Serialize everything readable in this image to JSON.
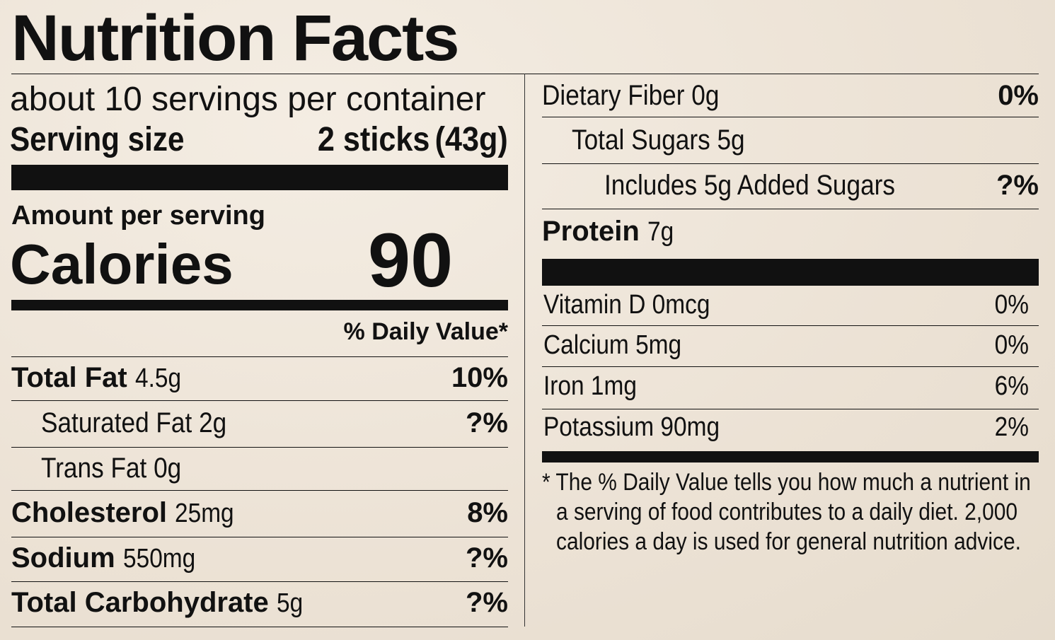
{
  "title": "Nutrition Facts",
  "servings_per_container": "about 10 servings per container",
  "serving_size": {
    "label": "Serving size",
    "amount": "2 sticks",
    "weight": "(43g)"
  },
  "amount_per_serving": "Amount per serving",
  "calories": {
    "label": "Calories",
    "value": "90"
  },
  "daily_value_header": "% Daily Value*",
  "left_nutrients": [
    {
      "name": "Total Fat",
      "amount": "4.5g",
      "dv": "10%"
    },
    {
      "name": "Saturated Fat",
      "amount": "2g",
      "dv": "?%"
    },
    {
      "name": "Trans Fat",
      "amount": "0g",
      "dv": ""
    },
    {
      "name": "Cholesterol",
      "amount": "25mg",
      "dv": "8%"
    },
    {
      "name": "Sodium",
      "amount": "550mg",
      "dv": "?%"
    },
    {
      "name": "Total Carbohydrate",
      "amount": "5g",
      "dv": "?%"
    }
  ],
  "right_nutrients": [
    {
      "name": "Dietary Fiber",
      "amount": "0g",
      "dv": "0%"
    },
    {
      "name": "Total Sugars",
      "amount": "5g",
      "dv": ""
    },
    {
      "name": "Includes 5g Added Sugars",
      "amount": "",
      "dv": "?%"
    },
    {
      "name": "Protein",
      "amount": "7g",
      "dv": ""
    }
  ],
  "vitamins": [
    {
      "name": "Vitamin D",
      "amount": "0mcg",
      "dv": "0%"
    },
    {
      "name": "Calcium",
      "amount": "5mg",
      "dv": "0%"
    },
    {
      "name": "Iron",
      "amount": "1mg",
      "dv": "6%"
    },
    {
      "name": "Potassium",
      "amount": "90mg",
      "dv": "2%"
    }
  ],
  "footnote": {
    "line1": "* The % Daily Value tells you how much a nutrient in",
    "line2": "a serving of food contributes to a daily diet. 2,000",
    "line3": "calories a day is used for general nutrition advice."
  }
}
